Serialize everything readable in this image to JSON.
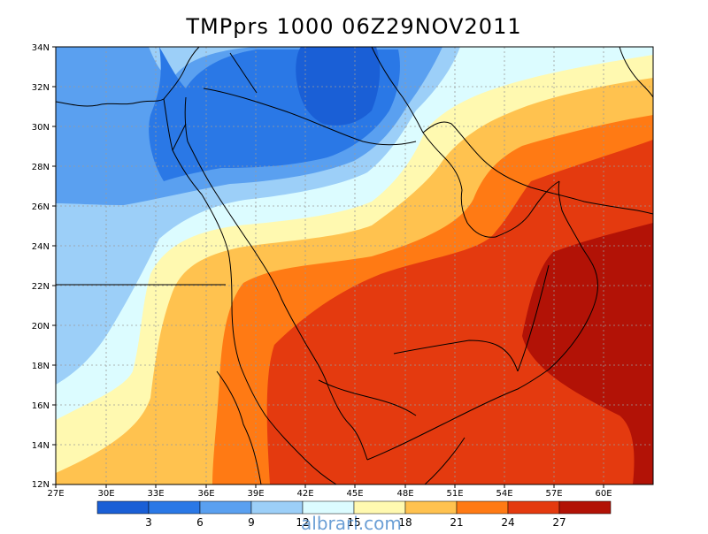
{
  "title": "TMPprs 1000 06Z29NOV2011",
  "watermark": "albrari.com",
  "lat_ticks": [
    "34N",
    "32N",
    "30N",
    "28N",
    "26N",
    "24N",
    "22N",
    "20N",
    "18N",
    "16N",
    "14N",
    "12N"
  ],
  "lon_ticks": [
    "27E",
    "30E",
    "33E",
    "36E",
    "39E",
    "42E",
    "45E",
    "48E",
    "51E",
    "54E",
    "57E",
    "60E"
  ],
  "colorbar": {
    "labels": [
      "3",
      "6",
      "9",
      "12",
      "15",
      "18",
      "21",
      "24",
      "27"
    ],
    "colors": [
      "#1a5fd6",
      "#2a78e6",
      "#5aa0f0",
      "#9ccff8",
      "#dcfcff",
      "#fff9b0",
      "#ffc24f",
      "#ff7a14",
      "#e43a0f",
      "#b21206"
    ]
  },
  "map_colors": {
    "c3": "#1a5fd6",
    "c6": "#2a78e6",
    "c9": "#5aa0f0",
    "c12": "#9ccff8",
    "c15": "#dcfcff",
    "c18": "#fff9b0",
    "c21": "#ffc24f",
    "c24": "#ff7a14",
    "c27": "#e43a0f",
    "c30": "#b21206"
  }
}
